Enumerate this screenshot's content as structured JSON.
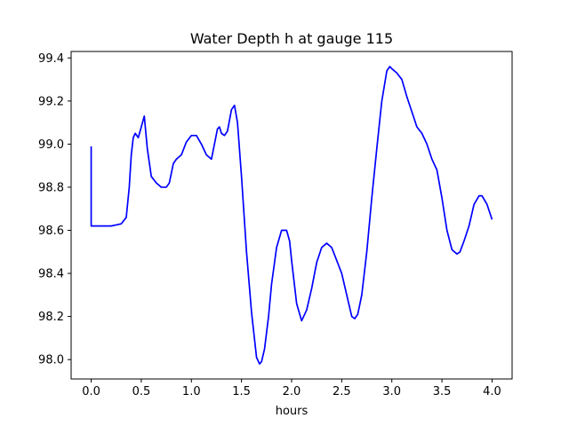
{
  "chart_data": {
    "type": "line",
    "title": "Water Depth h at gauge 115",
    "xlabel": "hours",
    "ylabel": "",
    "xlim": [
      -0.2,
      4.2
    ],
    "ylim": [
      97.91,
      99.43
    ],
    "xticks": [
      0.0,
      0.5,
      1.0,
      1.5,
      2.0,
      2.5,
      3.0,
      3.5,
      4.0
    ],
    "xtick_labels": [
      "0.0",
      "0.5",
      "1.0",
      "1.5",
      "2.0",
      "2.5",
      "3.0",
      "3.5",
      "4.0"
    ],
    "yticks": [
      98.0,
      98.2,
      98.4,
      98.6,
      98.8,
      99.0,
      99.2,
      99.4
    ],
    "ytick_labels": [
      "98.0",
      "98.2",
      "98.4",
      "98.6",
      "98.8",
      "99.0",
      "99.2",
      "99.4"
    ],
    "grid": false,
    "series": [
      {
        "color": "#0000ff",
        "x": [
          0.0,
          0.0,
          0.05,
          0.1,
          0.2,
          0.3,
          0.35,
          0.38,
          0.4,
          0.42,
          0.44,
          0.47,
          0.5,
          0.53,
          0.56,
          0.6,
          0.65,
          0.7,
          0.75,
          0.78,
          0.82,
          0.85,
          0.9,
          0.95,
          1.0,
          1.05,
          1.1,
          1.15,
          1.2,
          1.23,
          1.26,
          1.28,
          1.3,
          1.33,
          1.36,
          1.4,
          1.43,
          1.46,
          1.5,
          1.55,
          1.6,
          1.65,
          1.68,
          1.7,
          1.73,
          1.77,
          1.8,
          1.85,
          1.9,
          1.95,
          1.98,
          2.0,
          2.05,
          2.1,
          2.15,
          2.2,
          2.25,
          2.3,
          2.35,
          2.4,
          2.45,
          2.5,
          2.55,
          2.6,
          2.63,
          2.66,
          2.7,
          2.75,
          2.8,
          2.85,
          2.9,
          2.95,
          2.98,
          3.0,
          3.05,
          3.1,
          3.15,
          3.2,
          3.25,
          3.3,
          3.35,
          3.4,
          3.45,
          3.5,
          3.55,
          3.6,
          3.65,
          3.68,
          3.72,
          3.77,
          3.82,
          3.87,
          3.9,
          3.95,
          4.0
        ],
        "y": [
          98.99,
          98.62,
          98.62,
          98.62,
          98.62,
          98.63,
          98.66,
          98.8,
          98.95,
          99.03,
          99.05,
          99.03,
          99.08,
          99.13,
          98.98,
          98.85,
          98.82,
          98.8,
          98.8,
          98.82,
          98.91,
          98.93,
          98.95,
          99.01,
          99.04,
          99.04,
          99.0,
          98.95,
          98.93,
          99.0,
          99.07,
          99.08,
          99.05,
          99.04,
          99.06,
          99.16,
          99.18,
          99.1,
          98.85,
          98.5,
          98.22,
          98.01,
          97.98,
          97.99,
          98.05,
          98.2,
          98.35,
          98.52,
          98.6,
          98.6,
          98.55,
          98.46,
          98.26,
          98.18,
          98.23,
          98.33,
          98.45,
          98.52,
          98.54,
          98.52,
          98.46,
          98.4,
          98.3,
          98.2,
          98.19,
          98.21,
          98.3,
          98.5,
          98.75,
          98.98,
          99.2,
          99.34,
          99.36,
          99.35,
          99.33,
          99.3,
          99.22,
          99.15,
          99.08,
          99.05,
          99.0,
          98.93,
          98.88,
          98.75,
          98.6,
          98.51,
          98.49,
          98.5,
          98.55,
          98.62,
          98.72,
          98.76,
          98.76,
          98.72,
          98.65
        ]
      }
    ]
  }
}
